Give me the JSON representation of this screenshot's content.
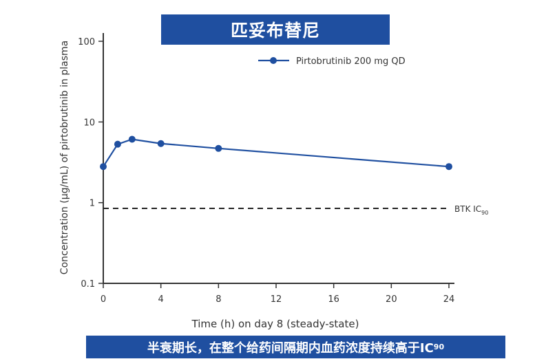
{
  "title": "匹妥布替尼",
  "footer": {
    "text": "半衰期长，在整个给药间隔期内血药浓度持续高于IC",
    "subscript": "90"
  },
  "chart_data": {
    "type": "line",
    "xlabel": "Time (h) on day 8 (steady-state)",
    "ylabel": "Concentration (µg/mL) of pirtobrutinib in plasma",
    "y_scale": "log",
    "xlim": [
      0,
      24
    ],
    "ylim": [
      0.1,
      100
    ],
    "x_ticks": [
      0,
      4,
      8,
      12,
      16,
      20,
      24
    ],
    "y_ticks": [
      {
        "value": 0.1,
        "label": "0.1"
      },
      {
        "value": 1,
        "label": "1"
      },
      {
        "value": 10,
        "label": "10"
      },
      {
        "value": 100,
        "label": "100"
      }
    ],
    "series": [
      {
        "name": "Pirtobrutinib 200 mg QD",
        "color": "#1f4fa0",
        "x": [
          0,
          1,
          2,
          4,
          8,
          24
        ],
        "y": [
          2.8,
          5.3,
          6.1,
          5.4,
          4.7,
          2.8
        ]
      }
    ],
    "reference_line": {
      "value": 0.85,
      "label": "BTK IC",
      "label_sub": "90",
      "style": "dashed"
    },
    "legend_position": "top-right",
    "grid": false
  }
}
